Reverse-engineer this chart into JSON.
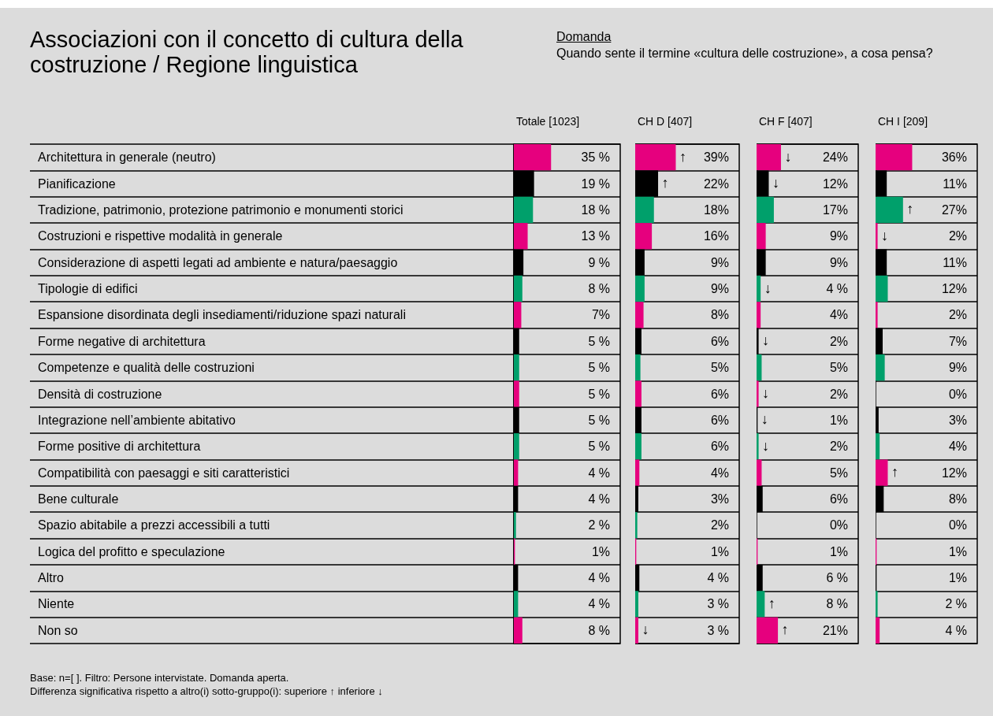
{
  "chart_data": [
    {
      "type": "bar",
      "orientation": "horizontal",
      "title": "Associazioni con il concetto di cultura della costruzione / Regione linguistica",
      "subtitle": "Domanda",
      "xlabel": "Totale [1023]",
      "tick_labels": "y",
      "xlim": [
        0,
        100
      ],
      "categories": [
        "Architettura in generale (neutro)",
        "Pianificazione",
        "Tradizione, patrimonio, protezione patrimonio e monumenti storici",
        "Costruzioni e rispettive modalità in generale",
        "Considerazione di aspetti legati ad ambiente e natura/paesaggio",
        "Tipologie di edifici",
        "Espansione disordinata degli insediamenti/riduzione spazi naturali",
        "Forme negative di architettura",
        "Competenze e qualità delle costruzioni",
        "Densità di costruzione",
        "Integrazione nell’ambiente abitativo",
        "Forme positive di architettura",
        "Compatibilità con paesaggi e siti caratteristici",
        "Bene culturale",
        "Spazio abitabile a prezzi accessibili a tutti",
        "Logica del profitto e speculazione",
        "Altro",
        "Niente",
        "Non so"
      ],
      "values": [
        35,
        19,
        18,
        13,
        9,
        8,
        7,
        5,
        5,
        5,
        5,
        5,
        4,
        4,
        2,
        1,
        4,
        4,
        8
      ],
      "value_labels": [
        "35 %",
        "19 %",
        "18 %",
        "13 %",
        "9 %",
        "8 %",
        "7%",
        "5 %",
        "5 %",
        "5 %",
        "5 %",
        "5 %",
        "4 %",
        "4 %",
        "2 %",
        "1%",
        "4 %",
        "4 %",
        "8 %"
      ],
      "colors": [
        "#e6007e",
        "#000000",
        "#00a06b",
        "#e6007e",
        "#000000",
        "#00a06b",
        "#e6007e",
        "#000000",
        "#00a06b",
        "#e6007e",
        "#000000",
        "#00a06b",
        "#e6007e",
        "#000000",
        "#00a06b",
        "#e6007e",
        "#000000",
        "#00a06b",
        "#e6007e"
      ],
      "annotations": [
        "Quando sente il termine «cultura delle costruzione», a cosa pensa?",
        "Base: n=[ ]. Filtro: Persone intervistate. Domanda aperta.",
        "Differenza significativa rispetto a altro(i)  sotto-gruppo(i): superiore ↑  inferiore ↓"
      ]
    },
    {
      "type": "bar",
      "orientation": "horizontal",
      "xlabel": "CH D [407]",
      "tick_labels": false,
      "xlim": [
        0,
        100
      ],
      "categories": [
        "Architettura in generale (neutro)",
        "Pianificazione",
        "Tradizione, patrimonio, protezione patrimonio e monumenti storici",
        "Costruzioni e rispettive modalità in generale",
        "Considerazione di aspetti legati ad ambiente e natura/paesaggio",
        "Tipologie di edifici",
        "Espansione disordinata degli insediamenti/riduzione spazi naturali",
        "Forme negative di architettura",
        "Competenze e qualità delle costruzioni",
        "Densità di costruzione",
        "Integrazione nell’ambiente abitativo",
        "Forme positive di architettura",
        "Compatibilità con paesaggi e siti caratteristici",
        "Bene culturale",
        "Spazio abitabile a prezzi accessibili a tutti",
        "Logica del profitto e speculazione",
        "Altro",
        "Niente",
        "Non so"
      ],
      "values": [
        39,
        22,
        18,
        16,
        9,
        9,
        8,
        6,
        5,
        6,
        6,
        6,
        4,
        3,
        2,
        1,
        4,
        3,
        3
      ],
      "value_labels": [
        "39%",
        "22%",
        "18%",
        "16%",
        "9%",
        "9%",
        "8%",
        "6%",
        "5%",
        "6%",
        "6%",
        "6%",
        "4%",
        "3%",
        "2%",
        "1%",
        "4 %",
        "3 %",
        "3 %"
      ],
      "colors": [
        "#e6007e",
        "#000000",
        "#00a06b",
        "#e6007e",
        "#000000",
        "#00a06b",
        "#e6007e",
        "#000000",
        "#00a06b",
        "#e6007e",
        "#000000",
        "#00a06b",
        "#e6007e",
        "#000000",
        "#00a06b",
        "#e6007e",
        "#000000",
        "#00a06b",
        "#e6007e"
      ],
      "annotations": [
        {
          "text": "↑",
          "x": 39,
          "y": "Architettura in generale (neutro)"
        },
        {
          "text": "↑",
          "x": 22,
          "y": "Pianificazione"
        },
        {
          "text": "↓",
          "x": 3,
          "y": "Non so"
        }
      ]
    },
    {
      "type": "bar",
      "orientation": "horizontal",
      "xlabel": "CH F [407]",
      "tick_labels": false,
      "xlim": [
        0,
        100
      ],
      "categories": [
        "Architettura in generale (neutro)",
        "Pianificazione",
        "Tradizione, patrimonio, protezione patrimonio e monumenti storici",
        "Costruzioni e rispettive modalità in generale",
        "Considerazione di aspetti legati ad ambiente e natura/paesaggio",
        "Tipologie di edifici",
        "Espansione disordinata degli insediamenti/riduzione spazi naturali",
        "Forme negative di architettura",
        "Competenze e qualità delle costruzioni",
        "Densità di costruzione",
        "Integrazione nell’ambiente abitativo",
        "Forme positive di architettura",
        "Compatibilità con paesaggi e siti caratteristici",
        "Bene culturale",
        "Spazio abitabile a prezzi accessibili a tutti",
        "Logica del profitto e speculazione",
        "Altro",
        "Niente",
        "Non so"
      ],
      "values": [
        24,
        12,
        17,
        9,
        9,
        4,
        4,
        2,
        5,
        2,
        1,
        2,
        5,
        6,
        0,
        1,
        6,
        8,
        21
      ],
      "value_labels": [
        "24%",
        "12%",
        "17%",
        "9%",
        "9%",
        "4 %",
        "4%",
        "2%",
        "5%",
        "2%",
        "1%",
        "2%",
        "5%",
        "6%",
        "0%",
        "1%",
        "6 %",
        "8 %",
        "21%"
      ],
      "colors": [
        "#e6007e",
        "#000000",
        "#00a06b",
        "#e6007e",
        "#000000",
        "#00a06b",
        "#e6007e",
        "#000000",
        "#00a06b",
        "#e6007e",
        "#000000",
        "#00a06b",
        "#e6007e",
        "#000000",
        "#00a06b",
        "#e6007e",
        "#000000",
        "#00a06b",
        "#e6007e"
      ],
      "annotations": [
        {
          "text": "↓",
          "x": 24,
          "y": "Architettura in generale (neutro)"
        },
        {
          "text": "↓",
          "x": 12,
          "y": "Pianificazione"
        },
        {
          "text": "↓",
          "x": 4,
          "y": "Tipologie di edifici"
        },
        {
          "text": "↓",
          "x": 2,
          "y": "Forme negative di architettura"
        },
        {
          "text": "↓",
          "x": 2,
          "y": "Densità di costruzione"
        },
        {
          "text": "↓",
          "x": 1,
          "y": "Integrazione nell’ambiente abitativo"
        },
        {
          "text": "↓",
          "x": 2,
          "y": "Forme positive di architettura"
        },
        {
          "text": "↑",
          "x": 8,
          "y": "Niente"
        },
        {
          "text": "↑",
          "x": 21,
          "y": "Non so"
        }
      ]
    },
    {
      "type": "bar",
      "orientation": "horizontal",
      "xlabel": "CH I [209]",
      "tick_labels": false,
      "xlim": [
        0,
        100
      ],
      "categories": [
        "Architettura in generale (neutro)",
        "Pianificazione",
        "Tradizione, patrimonio, protezione patrimonio e monumenti storici",
        "Costruzioni e rispettive modalità in generale",
        "Considerazione di aspetti legati ad ambiente e natura/paesaggio",
        "Tipologie di edifici",
        "Espansione disordinata degli insediamenti/riduzione spazi naturali",
        "Forme negative di architettura",
        "Competenze e qualità delle costruzioni",
        "Densità di costruzione",
        "Integrazione nell’ambiente abitativo",
        "Forme positive di architettura",
        "Compatibilità con paesaggi e siti caratteristici",
        "Bene culturale",
        "Spazio abitabile a prezzi accessibili a tutti",
        "Logica del profitto e speculazione",
        "Altro",
        "Niente",
        "Non so"
      ],
      "values": [
        36,
        11,
        27,
        2,
        11,
        12,
        2,
        7,
        9,
        0,
        3,
        4,
        12,
        8,
        0,
        1,
        1,
        2,
        4
      ],
      "value_labels": [
        "36%",
        "11%",
        "27%",
        "2%",
        "11%",
        "12%",
        "2%",
        "7%",
        "9%",
        "0%",
        "3%",
        "4%",
        "12%",
        "8%",
        "0%",
        "1%",
        "1%",
        "2 %",
        "4 %"
      ],
      "colors": [
        "#e6007e",
        "#000000",
        "#00a06b",
        "#e6007e",
        "#000000",
        "#00a06b",
        "#e6007e",
        "#000000",
        "#00a06b",
        "#e6007e",
        "#000000",
        "#00a06b",
        "#e6007e",
        "#000000",
        "#00a06b",
        "#e6007e",
        "#000000",
        "#00a06b",
        "#e6007e"
      ],
      "annotations": [
        {
          "text": "↑",
          "x": 27,
          "y": "Tradizione, patrimonio, protezione patrimonio e monumenti storici"
        },
        {
          "text": "↓",
          "x": 2,
          "y": "Costruzioni e rispettive modalità in generale"
        },
        {
          "text": "↑",
          "x": 12,
          "y": "Compatibilità con paesaggi e siti caratteristici"
        }
      ]
    }
  ]
}
